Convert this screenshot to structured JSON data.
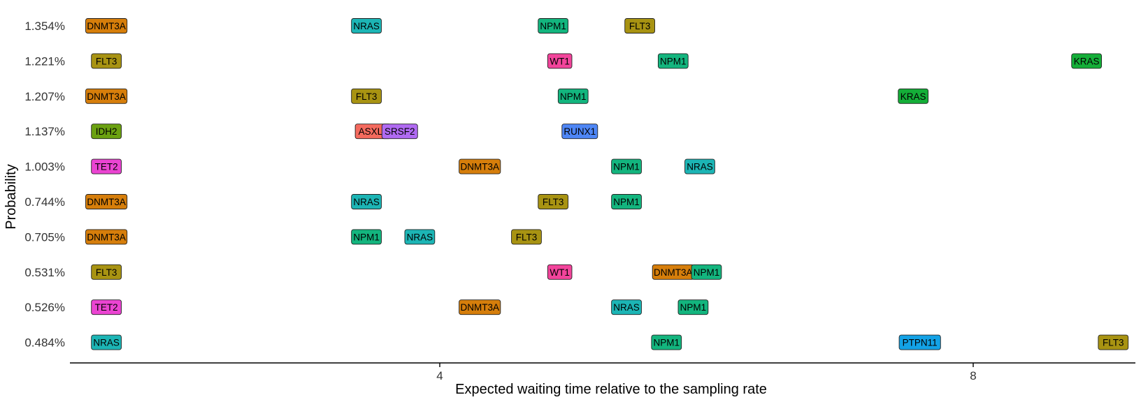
{
  "chart_data": {
    "type": "scatter",
    "title": "",
    "xlabel": "Expected waiting time relative to the sampling rate",
    "ylabel": "Probability",
    "xlim": [
      1.2,
      10.0
    ],
    "x_ticks": [
      4,
      8
    ],
    "y_categories": [
      "1.354%",
      "1.221%",
      "1.207%",
      "1.137%",
      "1.003%",
      "0.744%",
      "0.705%",
      "0.531%",
      "0.526%",
      "0.484%"
    ],
    "grid": false,
    "legend": "none",
    "gene_colors": {
      "DNMT3A": "#D67E0B",
      "NRAS": "#1CB5B5",
      "NPM1": "#13B57E",
      "FLT3": "#A89312",
      "WT1": "#F2449B",
      "KRAS": "#14AE38",
      "IDH2": "#6BA111",
      "ASXL1": "#F46A5E",
      "SRSF2": "#B06AF2",
      "RUNX1": "#4E86F5",
      "TET2": "#EB44D2",
      "PTPN11": "#13A2E6"
    },
    "points": [
      {
        "row": "1.354%",
        "gene": "DNMT3A",
        "x": 1.5
      },
      {
        "row": "1.354%",
        "gene": "NRAS",
        "x": 3.45
      },
      {
        "row": "1.354%",
        "gene": "NPM1",
        "x": 4.85
      },
      {
        "row": "1.354%",
        "gene": "FLT3",
        "x": 5.5
      },
      {
        "row": "1.221%",
        "gene": "FLT3",
        "x": 1.5
      },
      {
        "row": "1.221%",
        "gene": "WT1",
        "x": 4.9
      },
      {
        "row": "1.221%",
        "gene": "NPM1",
        "x": 5.75
      },
      {
        "row": "1.221%",
        "gene": "KRAS",
        "x": 8.85
      },
      {
        "row": "1.207%",
        "gene": "DNMT3A",
        "x": 1.5
      },
      {
        "row": "1.207%",
        "gene": "FLT3",
        "x": 3.45
      },
      {
        "row": "1.207%",
        "gene": "NPM1",
        "x": 5.0
      },
      {
        "row": "1.207%",
        "gene": "KRAS",
        "x": 7.55
      },
      {
        "row": "1.137%",
        "gene": "IDH2",
        "x": 1.5
      },
      {
        "row": "1.137%",
        "gene": "ASXL1",
        "x": 3.5
      },
      {
        "row": "1.137%",
        "gene": "SRSF2",
        "x": 3.7
      },
      {
        "row": "1.137%",
        "gene": "RUNX1",
        "x": 5.05
      },
      {
        "row": "1.003%",
        "gene": "TET2",
        "x": 1.5
      },
      {
        "row": "1.003%",
        "gene": "DNMT3A",
        "x": 4.3
      },
      {
        "row": "1.003%",
        "gene": "NPM1",
        "x": 5.4
      },
      {
        "row": "1.003%",
        "gene": "NRAS",
        "x": 5.95
      },
      {
        "row": "0.744%",
        "gene": "DNMT3A",
        "x": 1.5
      },
      {
        "row": "0.744%",
        "gene": "NRAS",
        "x": 3.45
      },
      {
        "row": "0.744%",
        "gene": "FLT3",
        "x": 4.85
      },
      {
        "row": "0.744%",
        "gene": "NPM1",
        "x": 5.4
      },
      {
        "row": "0.705%",
        "gene": "DNMT3A",
        "x": 1.5
      },
      {
        "row": "0.705%",
        "gene": "NPM1",
        "x": 3.45
      },
      {
        "row": "0.705%",
        "gene": "NRAS",
        "x": 3.85
      },
      {
        "row": "0.705%",
        "gene": "FLT3",
        "x": 4.65
      },
      {
        "row": "0.531%",
        "gene": "FLT3",
        "x": 1.5
      },
      {
        "row": "0.531%",
        "gene": "WT1",
        "x": 4.9
      },
      {
        "row": "0.531%",
        "gene": "DNMT3A",
        "x": 5.75
      },
      {
        "row": "0.531%",
        "gene": "NPM1",
        "x": 6.0
      },
      {
        "row": "0.526%",
        "gene": "TET2",
        "x": 1.5
      },
      {
        "row": "0.526%",
        "gene": "DNMT3A",
        "x": 4.3
      },
      {
        "row": "0.526%",
        "gene": "NRAS",
        "x": 5.4
      },
      {
        "row": "0.526%",
        "gene": "NPM1",
        "x": 5.9
      },
      {
        "row": "0.484%",
        "gene": "NRAS",
        "x": 1.5
      },
      {
        "row": "0.484%",
        "gene": "NPM1",
        "x": 5.7
      },
      {
        "row": "0.484%",
        "gene": "PTPN11",
        "x": 7.6
      },
      {
        "row": "0.484%",
        "gene": "FLT3",
        "x": 9.05
      }
    ]
  }
}
